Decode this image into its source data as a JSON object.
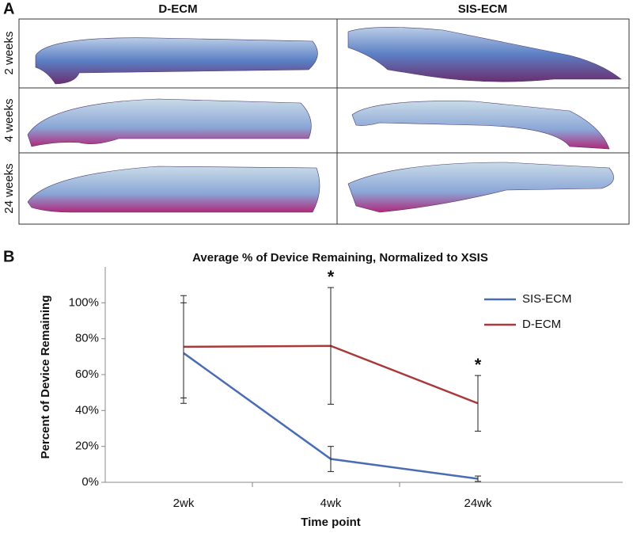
{
  "panel_a": {
    "letter": "A",
    "columns": [
      "D-ECM",
      "SIS-ECM"
    ],
    "rows": [
      "2 weeks",
      "4 weeks",
      "24 weeks"
    ]
  },
  "chart_data": {
    "letter": "B",
    "type": "line",
    "title": "Average % of Device Remaining, Normalized to XSIS",
    "x_label": "Time point",
    "y_label": "Percent of Device Remaining",
    "categories": [
      "2wk",
      "4wk",
      "24wk"
    ],
    "series": [
      {
        "name": "SIS-ECM",
        "color": "#4a6bb5",
        "values": [
          72,
          13,
          2
        ],
        "errors": [
          28,
          7,
          1.5
        ]
      },
      {
        "name": "D-ECM",
        "color": "#a83a3a",
        "values": [
          75.5,
          76,
          44
        ],
        "errors": [
          28.5,
          32.5,
          15.5
        ]
      }
    ],
    "annotations": [
      {
        "text": "*",
        "category": "4wk"
      },
      {
        "text": "*",
        "category": "24wk"
      }
    ],
    "ylim": [
      0,
      120
    ],
    "yticks": [
      {
        "value": 0,
        "label": "0%"
      },
      {
        "value": 20,
        "label": "20%"
      },
      {
        "value": 40,
        "label": "40%"
      },
      {
        "value": 60,
        "label": "60%"
      },
      {
        "value": 80,
        "label": "80%"
      },
      {
        "value": 100,
        "label": "100%"
      }
    ],
    "legend": "upper-right"
  }
}
